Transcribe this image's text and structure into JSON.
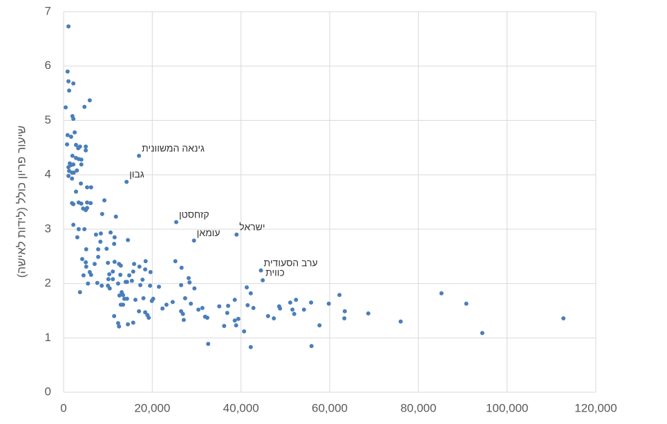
{
  "chart_data": {
    "type": "scatter",
    "y_label": "שיעור פריון כולל (לידות לאישה)",
    "xlim": [
      0,
      120000
    ],
    "xticks": [
      {
        "value": 0,
        "label": "0"
      },
      {
        "value": 20000,
        "label": "20,000"
      },
      {
        "value": 40000,
        "label": "40,000"
      },
      {
        "value": 60000,
        "label": "60,000"
      },
      {
        "value": 80000,
        "label": "80,000"
      },
      {
        "value": 100000,
        "label": "100,000"
      },
      {
        "value": 120000,
        "label": "120,000"
      }
    ],
    "ylim": [
      0,
      7
    ],
    "yticks": [
      0,
      1,
      2,
      3,
      4,
      5,
      6,
      7
    ],
    "grid": true,
    "color": "#4a7ebb",
    "x": [
      1100,
      900,
      1100,
      1250,
      2200,
      470,
      2000,
      2200,
      4700,
      5900,
      900,
      2500,
      780,
      1700,
      2800,
      3300,
      3700,
      5000,
      5000,
      2000,
      2800,
      3400,
      4000,
      4000,
      1400,
      1700,
      1100,
      2200,
      1250,
      1900,
      2300,
      3000,
      1100,
      1900,
      3900,
      5300,
      6200,
      2800,
      1900,
      2200,
      3400,
      4000,
      5300,
      6100,
      4400,
      5000,
      5300,
      9200,
      8700,
      11800,
      2200,
      3400,
      4700,
      3100,
      7300,
      8400,
      10600,
      11500,
      8300,
      5100,
      11400,
      14500,
      7800,
      9700,
      7800,
      4200,
      5000,
      7000,
      10000,
      11500,
      12500,
      12900,
      15900,
      17100,
      18500,
      15700,
      18400,
      19600,
      11100,
      5100,
      4500,
      5900,
      6200,
      10300,
      12800,
      10100,
      11100,
      14800,
      15400,
      17800,
      14300,
      5500,
      7600,
      8600,
      10000,
      10400,
      12300,
      14000,
      17300,
      19500,
      3700,
      13100,
      12600,
      13400,
      13700,
      12900,
      13400,
      14300,
      16200,
      18000,
      21500,
      25200,
      26600,
      26500,
      28200,
      28400,
      29500,
      19900,
      20200,
      22300,
      23200,
      24600,
      27400,
      28700,
      30400,
      31300,
      17000,
      18400,
      19200,
      18900,
      11400,
      12300,
      12500,
      14500,
      15700,
      26500,
      26900,
      27100,
      31900,
      32400,
      32600,
      35100,
      37100,
      36900,
      36200,
      38600,
      38600,
      39400,
      38900,
      40700,
      41300,
      41500,
      42200,
      42800,
      42200,
      46100,
      47400,
      48600,
      48800,
      51100,
      51600,
      52400,
      52000,
      54200,
      55800,
      55900,
      57700,
      59800,
      62200,
      63400,
      63300,
      68700,
      76000,
      85200,
      90800,
      94400,
      112700
    ],
    "y": [
      6.73,
      5.9,
      5.72,
      5.55,
      5.68,
      5.24,
      5.08,
      5.03,
      5.25,
      5.37,
      4.73,
      4.78,
      4.56,
      4.7,
      4.55,
      4.49,
      4.52,
      4.52,
      4.45,
      4.35,
      4.31,
      4.29,
      4.28,
      4.19,
      4.21,
      4.18,
      4.14,
      4.19,
      4.07,
      4.04,
      4.04,
      4.08,
      3.98,
      3.93,
      3.84,
      3.77,
      3.77,
      3.69,
      3.48,
      3.46,
      3.49,
      3.47,
      3.49,
      3.48,
      3.38,
      3.35,
      3.39,
      3.53,
      3.28,
      3.23,
      3.08,
      3.0,
      3.0,
      2.85,
      2.9,
      2.92,
      2.94,
      2.85,
      2.77,
      2.63,
      2.73,
      2.8,
      2.63,
      2.64,
      2.49,
      2.45,
      2.39,
      2.36,
      2.38,
      2.4,
      2.36,
      2.33,
      2.36,
      2.31,
      2.41,
      2.22,
      2.26,
      2.21,
      2.22,
      2.31,
      2.15,
      2.21,
      2.16,
      2.17,
      2.16,
      2.08,
      2.08,
      2.15,
      2.05,
      2.07,
      2.03,
      2.0,
      2.01,
      1.96,
      1.96,
      1.91,
      2.0,
      2.03,
      1.97,
      1.96,
      1.84,
      1.84,
      1.78,
      1.79,
      1.72,
      1.61,
      1.61,
      1.72,
      1.7,
      1.73,
      1.94,
      2.41,
      2.29,
      1.97,
      2.1,
      2.02,
      1.91,
      1.68,
      1.72,
      1.54,
      1.61,
      1.66,
      1.73,
      1.63,
      1.52,
      1.55,
      1.49,
      1.47,
      1.37,
      1.42,
      1.4,
      1.27,
      1.21,
      1.25,
      1.28,
      1.49,
      1.44,
      1.33,
      1.39,
      1.37,
      0.89,
      1.58,
      1.59,
      1.46,
      1.22,
      1.7,
      1.32,
      1.35,
      1.23,
      1.12,
      1.93,
      1.6,
      1.82,
      1.55,
      0.83,
      1.4,
      1.36,
      1.58,
      1.54,
      1.65,
      1.52,
      1.7,
      1.44,
      1.52,
      1.65,
      0.85,
      1.23,
      1.63,
      1.79,
      1.49,
      1.36,
      1.45,
      1.3,
      1.82,
      1.63,
      1.09,
      1.36
    ],
    "labeled_points": [
      {
        "label": "גינאה המשוונית",
        "x": 17000,
        "y": 4.35
      },
      {
        "label": "גבון",
        "x": 14200,
        "y": 3.87
      },
      {
        "label": "קזחסטן",
        "x": 25400,
        "y": 3.13
      },
      {
        "label": "עומאן",
        "x": 29400,
        "y": 2.79
      },
      {
        "label": "ישראל",
        "x": 39000,
        "y": 2.9
      },
      {
        "label": "ערב הסעודית",
        "x": 44500,
        "y": 2.24
      },
      {
        "label": "כווית",
        "x": 44900,
        "y": 2.06
      }
    ]
  }
}
